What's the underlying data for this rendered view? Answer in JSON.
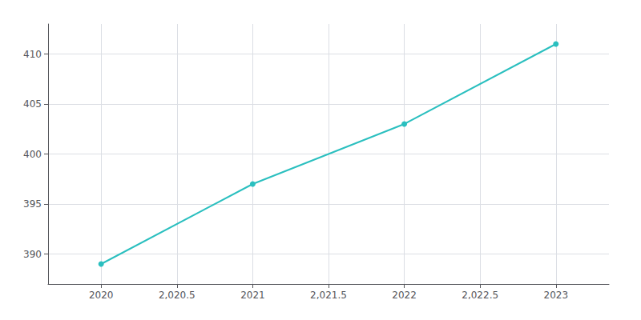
{
  "chart_data": {
    "type": "line",
    "x": [
      2020,
      2021,
      2022,
      2023
    ],
    "values": [
      389,
      397,
      403,
      411
    ],
    "color": "#2abfbf",
    "marker": "circle",
    "xlim": [
      2019.65,
      2023.35
    ],
    "xticks": [
      2020,
      {
        "value": 2020.5,
        "label": "2,020.5"
      },
      2021,
      {
        "value": 2021.5,
        "label": "2,021.5"
      },
      2022,
      {
        "value": 2022.5,
        "label": "2,022.5"
      },
      2023
    ],
    "ylim": [
      387,
      413
    ],
    "yticks": [
      390,
      395,
      400,
      405,
      410
    ],
    "grid": true
  }
}
